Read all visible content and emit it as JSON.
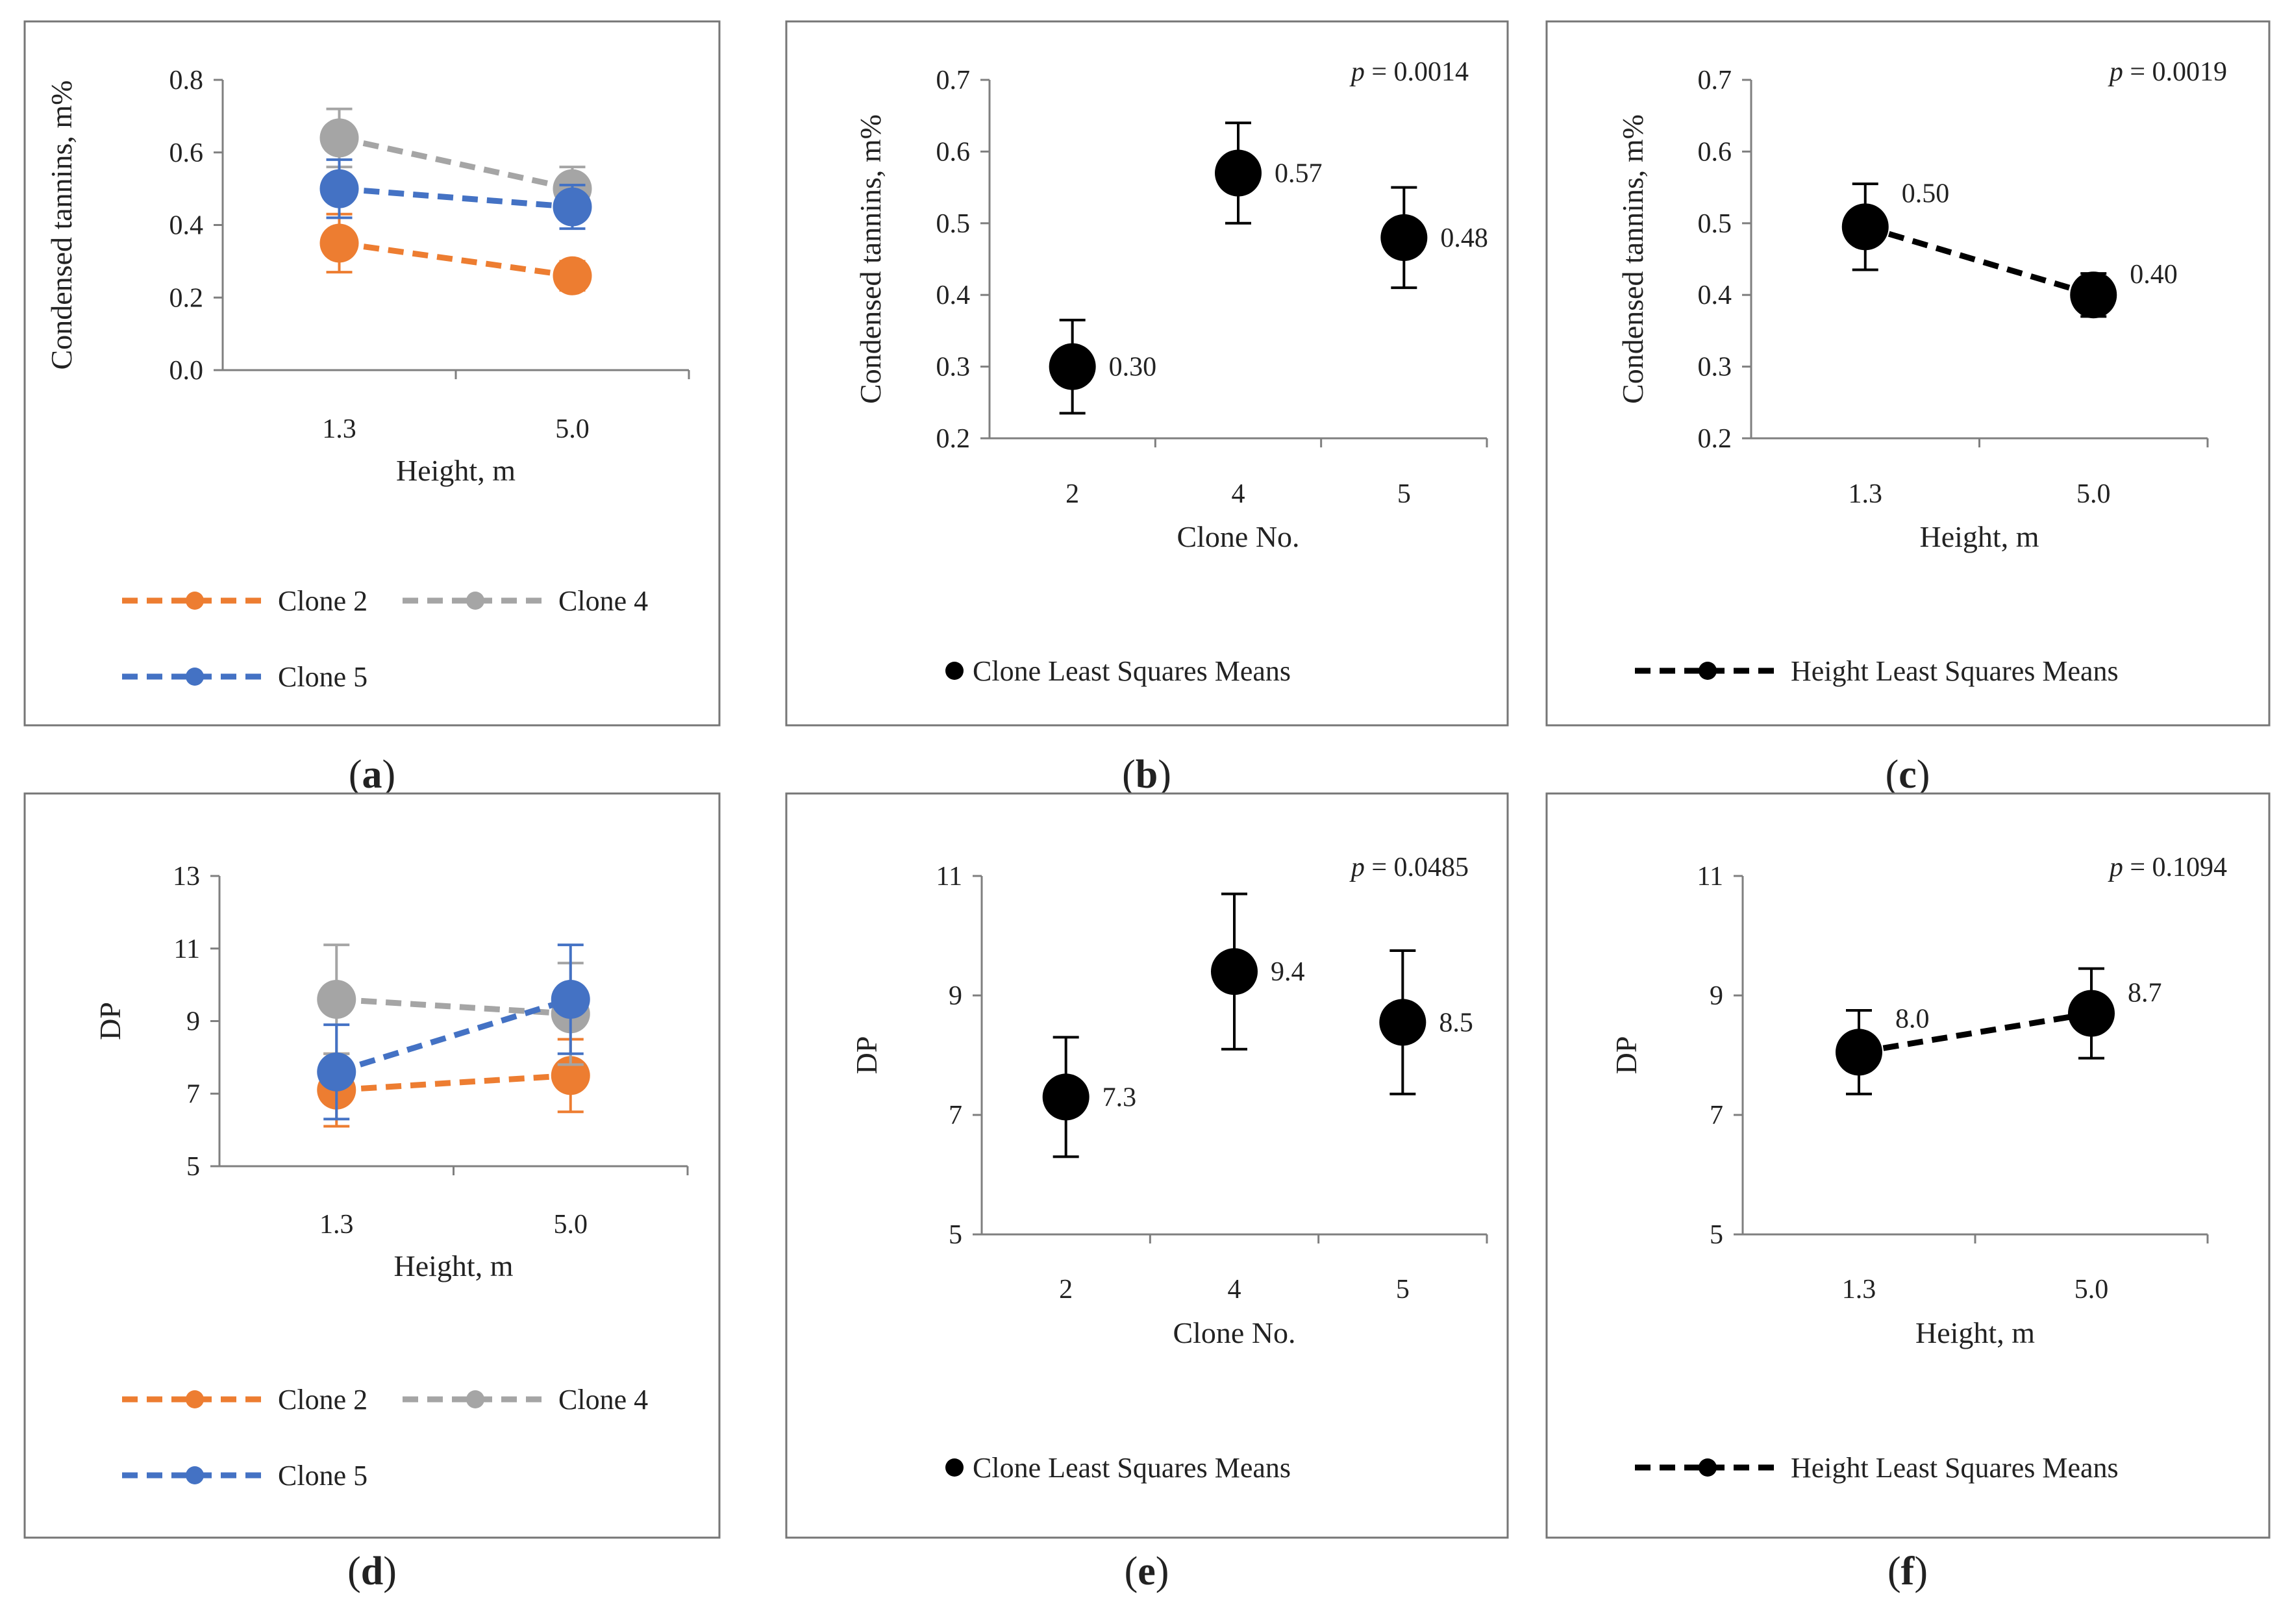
{
  "figure": {
    "panel_labels": [
      "a",
      "b",
      "c",
      "d",
      "e",
      "f"
    ]
  },
  "colors": {
    "clone2": "#ED7D31",
    "clone4": "#A5A5A5",
    "clone5": "#4472C4",
    "black": "#000000",
    "axis": "#7F7F7F",
    "frame": "#767676",
    "text": "#222222"
  },
  "chart_data": [
    {
      "id": "a",
      "type": "line",
      "ylabel": "Condensed tannins, m%",
      "xlabel": "Height, m",
      "categories": [
        "1.3",
        "5.0"
      ],
      "ylim": [
        0,
        0.8
      ],
      "yticks": [
        0,
        0.2,
        0.4,
        0.6,
        0.8
      ],
      "ytick_labels": [
        "0.0",
        "0.2",
        "0.4",
        "0.6",
        "0.8"
      ],
      "series": [
        {
          "name": "Clone 2",
          "color_key": "clone2",
          "values": [
            0.35,
            0.26
          ],
          "errors": [
            0.08,
            0.04
          ]
        },
        {
          "name": "Clone 4",
          "color_key": "clone4",
          "values": [
            0.64,
            0.5
          ],
          "errors": [
            0.08,
            0.06
          ]
        },
        {
          "name": "Clone 5",
          "color_key": "clone5",
          "values": [
            0.5,
            0.45
          ],
          "errors": [
            0.08,
            0.06
          ]
        }
      ],
      "legend": [
        "Clone 2",
        "Clone 4",
        "Clone 5"
      ]
    },
    {
      "id": "b",
      "type": "scatter",
      "ylabel": "Condensed tannins, m%",
      "xlabel": "Clone No.",
      "categories": [
        "2",
        "4",
        "5"
      ],
      "ylim": [
        0.2,
        0.7
      ],
      "yticks": [
        0.2,
        0.3,
        0.4,
        0.5,
        0.6,
        0.7
      ],
      "ytick_labels": [
        "0.2",
        "0.3",
        "0.4",
        "0.5",
        "0.6",
        "0.7"
      ],
      "series": [
        {
          "name": "Clone Least Squares Means",
          "color_key": "black",
          "values": [
            0.3,
            0.57,
            0.48
          ],
          "errors": [
            0.065,
            0.07,
            0.07
          ],
          "labels": [
            "0.30",
            "0.57",
            "0.48"
          ]
        }
      ],
      "annotation": {
        "p_label": "p",
        "p_value": " = 0.0014"
      },
      "legend": [
        "Clone Least Squares Means"
      ]
    },
    {
      "id": "c",
      "type": "line",
      "ylabel": "Condensed tannins, m%",
      "xlabel": "Height, m",
      "categories": [
        "1.3",
        "5.0"
      ],
      "ylim": [
        0.2,
        0.7
      ],
      "yticks": [
        0.2,
        0.3,
        0.4,
        0.5,
        0.6,
        0.7
      ],
      "ytick_labels": [
        "0.2",
        "0.3",
        "0.4",
        "0.5",
        "0.6",
        "0.7"
      ],
      "series": [
        {
          "name": "Height Least Squares Means",
          "color_key": "black",
          "values": [
            0.495,
            0.4
          ],
          "errors": [
            0.06,
            0.03
          ],
          "labels": [
            "0.50",
            "0.40"
          ]
        }
      ],
      "annotation": {
        "p_label": "p",
        "p_value": " = 0.0019"
      },
      "legend": [
        "Height Least Squares Means"
      ]
    },
    {
      "id": "d",
      "type": "line",
      "ylabel": "DP",
      "xlabel": "Height, m",
      "categories": [
        "1.3",
        "5.0"
      ],
      "ylim": [
        5,
        13
      ],
      "yticks": [
        5,
        7,
        9,
        11,
        13
      ],
      "ytick_labels": [
        "5",
        "7",
        "9",
        "11",
        "13"
      ],
      "series": [
        {
          "name": "Clone 2",
          "color_key": "clone2",
          "values": [
            7.1,
            7.5
          ],
          "errors": [
            1.0,
            1.0
          ]
        },
        {
          "name": "Clone 4",
          "color_key": "clone4",
          "values": [
            9.6,
            9.2
          ],
          "errors": [
            1.5,
            1.4
          ]
        },
        {
          "name": "Clone 5",
          "color_key": "clone5",
          "values": [
            7.6,
            9.6
          ],
          "errors": [
            1.3,
            1.5
          ]
        }
      ],
      "legend": [
        "Clone 2",
        "Clone 4",
        "Clone 5"
      ]
    },
    {
      "id": "e",
      "type": "scatter",
      "ylabel": "DP",
      "xlabel": "Clone No.",
      "categories": [
        "2",
        "4",
        "5"
      ],
      "ylim": [
        5,
        11
      ],
      "yticks": [
        5,
        7,
        9,
        11
      ],
      "ytick_labels": [
        "5",
        "7",
        "9",
        "11"
      ],
      "series": [
        {
          "name": "Clone Least Squares Means",
          "color_key": "black",
          "values": [
            7.3,
            9.4,
            8.55
          ],
          "errors": [
            1.0,
            1.3,
            1.2
          ],
          "labels": [
            "7.3",
            "9.4",
            "8.5"
          ]
        }
      ],
      "annotation": {
        "p_label": "p",
        "p_value": " = 0.0485"
      },
      "legend": [
        "Clone Least Squares Means"
      ]
    },
    {
      "id": "f",
      "type": "line",
      "ylabel": "DP",
      "xlabel": "Height, m",
      "categories": [
        "1.3",
        "5.0"
      ],
      "ylim": [
        5,
        11
      ],
      "yticks": [
        5,
        7,
        9,
        11
      ],
      "ytick_labels": [
        "5",
        "7",
        "9",
        "11"
      ],
      "series": [
        {
          "name": "Height Least Squares Means",
          "color_key": "black",
          "values": [
            8.05,
            8.7
          ],
          "errors": [
            0.7,
            0.75
          ],
          "labels": [
            "8.0",
            "8.7"
          ]
        }
      ],
      "annotation": {
        "p_label": "p",
        "p_value": " = 0.1094"
      },
      "legend": [
        "Height Least Squares Means"
      ]
    }
  ]
}
